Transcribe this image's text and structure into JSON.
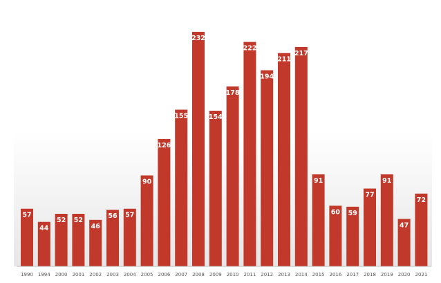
{
  "chart_data": {
    "type": "bar",
    "categories": [
      "1990",
      "1994",
      "2000",
      "2001",
      "2002",
      "2003",
      "2004",
      "2005",
      "2006",
      "2007",
      "2008",
      "2009",
      "2010",
      "2011",
      "2012",
      "2013",
      "2014",
      "2015",
      "2016",
      "2017",
      "2018",
      "2019",
      "2020",
      "2021"
    ],
    "values": [
      57,
      44,
      52,
      52,
      46,
      56,
      57,
      90,
      126,
      155,
      232,
      154,
      178,
      222,
      194,
      211,
      217,
      91,
      60,
      59,
      77,
      91,
      47,
      72
    ],
    "title": "",
    "xlabel": "",
    "ylabel": "",
    "ylim": [
      0,
      240
    ],
    "grid": false,
    "legend": "none",
    "bar_color": "#c0392b",
    "label_color": "#ffffff"
  }
}
